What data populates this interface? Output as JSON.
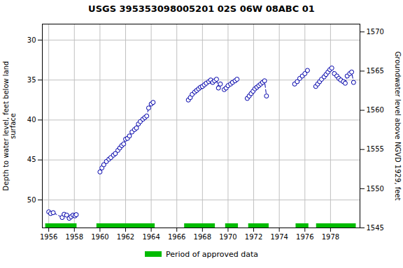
{
  "chart_data": {
    "type": "line",
    "title": "USGS 395353098005201 02S 06W 08ABC 01",
    "ylabel": "Depth to water level, feet below land\nsurface",
    "y2label": "Groundwater level above NGVD 1929, feet",
    "xlim": [
      1955.5,
      1980.3
    ],
    "xticks": [
      1956,
      1958,
      1960,
      1962,
      1964,
      1966,
      1968,
      1970,
      1972,
      1974,
      1976,
      1978
    ],
    "ylim": [
      53.5,
      28.0
    ],
    "yticks": [
      30,
      35,
      40,
      45,
      50
    ],
    "y2lim": [
      1545,
      1571
    ],
    "y2ticks": [
      1545,
      1550,
      1555,
      1560,
      1565,
      1570
    ],
    "grid": true,
    "legend": "bottom",
    "color": "#0000aa",
    "marker": "circle",
    "line_style": "dashed",
    "series": [
      {
        "x": [
          1956.0,
          1956.15,
          1956.35,
          1957.05,
          1957.2,
          1957.4,
          1957.6,
          1957.75,
          1957.9,
          1958.05,
          1958.15
        ],
        "values": [
          51.5,
          51.7,
          51.6,
          52.2,
          51.8,
          51.9,
          52.3,
          52.1,
          51.9,
          52.0,
          51.85
        ]
      },
      {
        "x": [
          1960.0,
          1960.15,
          1960.3,
          1960.5,
          1960.7,
          1960.85,
          1961.05,
          1961.2,
          1961.4,
          1961.55,
          1961.7,
          1961.85,
          1962.0,
          1962.15,
          1962.3,
          1962.5,
          1962.7,
          1962.85,
          1963.0,
          1963.15,
          1963.35,
          1963.5,
          1963.65,
          1963.8,
          1964.0,
          1964.15
        ],
        "values": [
          46.5,
          46.0,
          45.6,
          45.2,
          44.9,
          44.7,
          44.4,
          44.2,
          43.8,
          43.5,
          43.2,
          43.0,
          42.4,
          42.3,
          42.0,
          41.5,
          41.2,
          41.0,
          40.5,
          40.2,
          39.9,
          39.7,
          39.5,
          38.5,
          38.0,
          37.8
        ]
      },
      {
        "x": [
          1966.9,
          1967.05,
          1967.2,
          1967.4,
          1967.55,
          1967.7,
          1967.85,
          1968.0,
          1968.15,
          1968.3,
          1968.5,
          1968.65,
          1968.8,
          1968.95,
          1969.1,
          1969.25,
          1969.4
        ],
        "values": [
          37.5,
          37.2,
          36.8,
          36.5,
          36.3,
          36.1,
          35.9,
          35.8,
          35.6,
          35.4,
          35.2,
          35.0,
          35.3,
          35.1,
          34.9,
          36.0,
          35.5
        ]
      },
      {
        "x": [
          1969.7,
          1969.85,
          1970.0,
          1970.2,
          1970.35,
          1970.55,
          1970.7
        ],
        "values": [
          36.2,
          36.0,
          35.7,
          35.5,
          35.3,
          35.1,
          34.9
        ]
      },
      {
        "x": [
          1971.5,
          1971.65,
          1971.8,
          1971.95,
          1972.1,
          1972.25,
          1972.4,
          1972.55,
          1972.7,
          1972.85,
          1973.0
        ],
        "values": [
          37.3,
          37.0,
          36.7,
          36.4,
          36.1,
          35.9,
          35.7,
          35.5,
          35.3,
          35.1,
          37.0
        ]
      },
      {
        "x": [
          1975.2,
          1975.4,
          1975.6,
          1975.8,
          1976.0,
          1976.2
        ],
        "values": [
          35.5,
          35.2,
          34.8,
          34.5,
          34.2,
          33.8
        ]
      },
      {
        "x": [
          1976.85,
          1977.0,
          1977.15,
          1977.3,
          1977.5,
          1977.65,
          1977.8,
          1977.95,
          1978.1,
          1978.3,
          1978.5,
          1978.65,
          1978.8,
          1979.0,
          1979.15,
          1979.3,
          1979.5,
          1979.65,
          1979.8
        ],
        "values": [
          35.8,
          35.5,
          35.2,
          34.9,
          34.6,
          34.3,
          34.0,
          33.7,
          33.5,
          34.2,
          34.5,
          34.8,
          35.0,
          35.2,
          35.4,
          34.5,
          34.2,
          34.0,
          35.3
        ]
      }
    ],
    "approved_periods": {
      "name": "Period of approved data",
      "color": "#00bb00",
      "periods": [
        [
          1955.75,
          1958.2
        ],
        [
          1959.75,
          1964.3
        ],
        [
          1966.6,
          1969.0
        ],
        [
          1969.8,
          1970.8
        ],
        [
          1971.6,
          1973.2
        ],
        [
          1975.3,
          1976.3
        ],
        [
          1976.9,
          1980.0
        ]
      ]
    }
  }
}
